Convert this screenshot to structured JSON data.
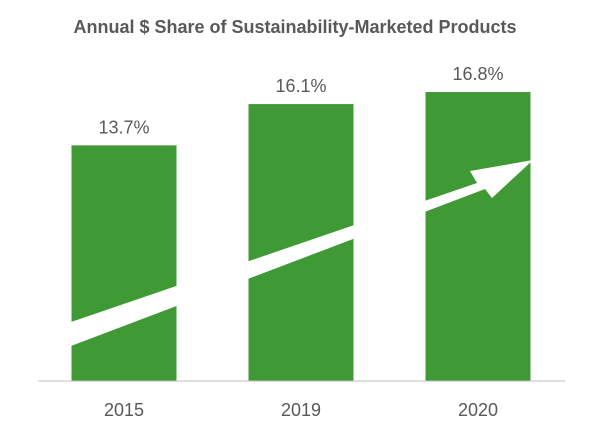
{
  "chart_data": {
    "type": "bar",
    "title": "Annual $ Share of Sustainability-Marketed Products",
    "categories": [
      "2015",
      "2019",
      "2020"
    ],
    "values": [
      13.7,
      16.1,
      16.8
    ],
    "data_labels": [
      "13.7%",
      "16.1%",
      "16.8%"
    ],
    "xlabel": "",
    "ylabel": "",
    "ylim": [
      0,
      17.5
    ],
    "grid": false,
    "legend": "none",
    "colors": {
      "bar": "#3f9a36",
      "axis": "#bfbfbf",
      "text": "#595959",
      "arrow": "#ffffff"
    },
    "annotations": [
      {
        "type": "trend-arrow",
        "direction": "up-right",
        "color": "#ffffff"
      }
    ]
  }
}
